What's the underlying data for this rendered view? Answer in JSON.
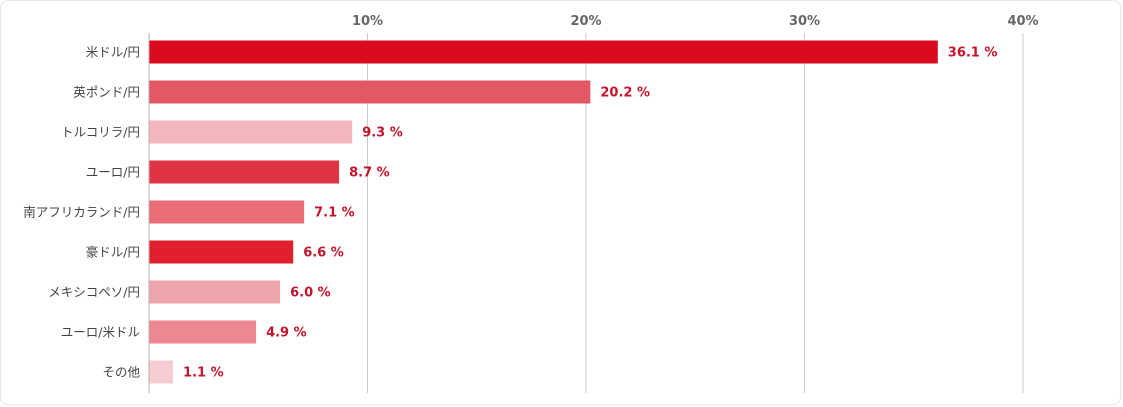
{
  "chart_data": {
    "type": "bar",
    "orientation": "horizontal",
    "title": "",
    "xlabel": "",
    "ylabel": "",
    "xlim": [
      0,
      40
    ],
    "ticks": [
      10,
      20,
      30,
      40
    ],
    "tick_labels": [
      "10%",
      "20%",
      "30%",
      "40%"
    ],
    "grid": true,
    "categories": [
      "米ドル/円",
      "英ポンド/円",
      "トルコリラ/円",
      "ユーロ/円",
      "南アフリカランド/円",
      "豪ドル/円",
      "メキシコペソ/円",
      "ユーロ/米ドル",
      "その他"
    ],
    "values": [
      36.1,
      20.2,
      9.3,
      8.7,
      7.1,
      6.6,
      6.0,
      4.9,
      1.1
    ],
    "value_labels": [
      "36.1 %",
      "20.2 %",
      "9.3 %",
      "8.7 %",
      "7.1 %",
      "6.6 %",
      "6.0 %",
      "4.9 %",
      "1.1 %"
    ],
    "colors": [
      "#dc0a1e",
      "#e45866",
      "#f2b6bc",
      "#e03444",
      "#ea6e78",
      "#e1202e",
      "#efa3aa",
      "#ec8891",
      "#f6ccd0"
    ],
    "axis_color": "#b0b0b0",
    "grid_color": "#cccccc",
    "label_color": "#c4132a"
  }
}
